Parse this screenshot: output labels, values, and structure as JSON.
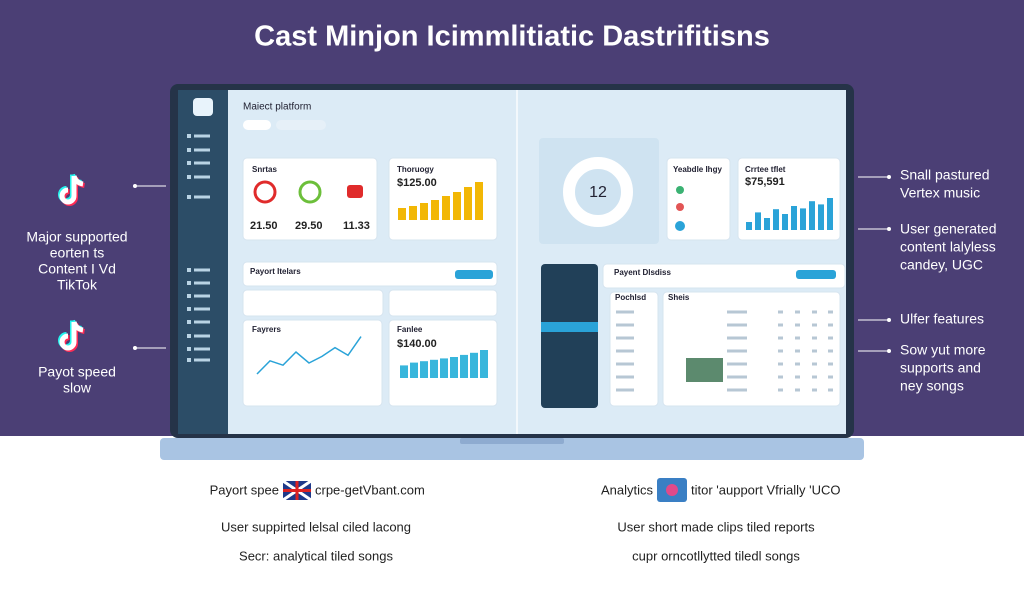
{
  "title": "Cast Minjon Icimmlitiatic Dastrifitisns",
  "left_notes": [
    [
      "Major supported",
      "eorten ts",
      "Content I Vd",
      "TikTok"
    ],
    [
      "Payot speed",
      "slow"
    ]
  ],
  "right_notes": [
    [
      "Snall pastured",
      "Vertex music"
    ],
    [
      "User generated",
      "content lalyless",
      "candey, UGC"
    ],
    [
      "Ulfer features"
    ],
    [
      "Sow yut more",
      "supports and",
      "ney songs"
    ]
  ],
  "dashboard": {
    "header": "Maiect platform",
    "left": {
      "stats_card": {
        "title": "Snrtas",
        "values": [
          "21.50",
          "29.50",
          "11.33"
        ]
      },
      "revenue_card": {
        "title": "Thoruogy",
        "amount": "$125.00",
        "color": "#f2b705",
        "bars": [
          12,
          14,
          17,
          20,
          24,
          28,
          33,
          38
        ]
      },
      "panel_title": "Payort Itelars",
      "line_card": {
        "title": "Fayrers",
        "color": "#2aa3d8",
        "values": [
          10,
          22,
          18,
          30,
          20,
          26,
          34,
          27,
          44
        ]
      },
      "bar_card": {
        "title": "Fanlee",
        "amount": "$140.00",
        "color": "#38b6dc",
        "bars": [
          18,
          22,
          24,
          26,
          28,
          30,
          33,
          36,
          40
        ]
      }
    },
    "right": {
      "donut_value": "12",
      "card_title": "Yeabdle Ihgy",
      "stats_card": {
        "title": "Crrtee tflet",
        "amount": "$75,591",
        "color": "#2aa3d8",
        "bars": [
          10,
          22,
          15,
          26,
          20,
          30,
          27,
          36,
          32,
          40
        ]
      },
      "panel_title": "Payent Dlsdiss",
      "list_title": "Pochlsd",
      "table_title": "Sheis"
    }
  },
  "footer": {
    "left": [
      "Payort spee",
      "crpe-getVbant.com",
      "User suppirted lelsal ciled lacong",
      "Secr: analytical tiled songs"
    ],
    "right": [
      "Analytics",
      "titor 'aupport Vfrially 'UCO",
      "User short made clips tiled reports",
      "cupr orncotllytted tiledl songs"
    ]
  }
}
